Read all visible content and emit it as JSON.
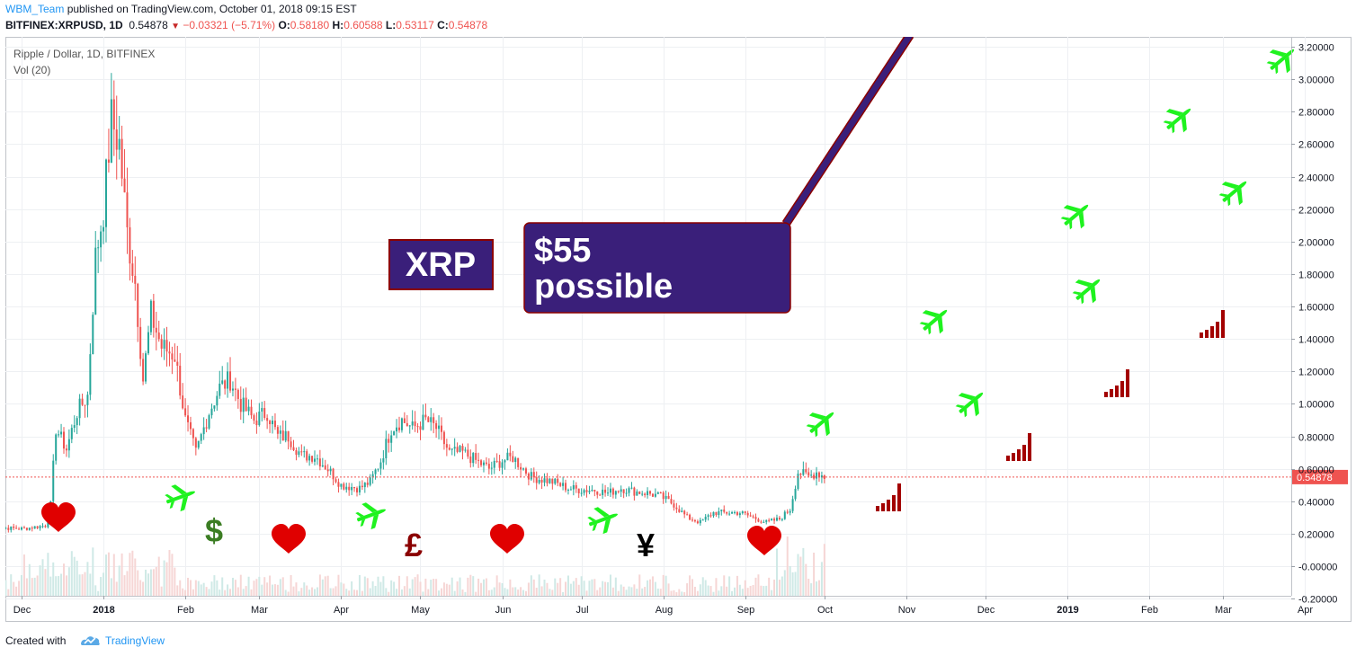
{
  "header": {
    "author": "WBM_Team",
    "published": "published on TradingView.com, October 01, 2018 09:15 EST",
    "symbol": "BITFINEX:XRPUSD, 1D",
    "last": "0.54878",
    "change": "−0.03321 (−5.71%)",
    "o_label": "O:",
    "o_value": "0.58180",
    "h_label": "H:",
    "h_value": "0.60588",
    "l_label": "L:",
    "l_value": "0.53117",
    "c_label": "C:",
    "c_value": "0.54878"
  },
  "legend": {
    "title": "Ripple / Dollar, 1D, BITFINEX",
    "volume": "Vol (20)"
  },
  "footer": {
    "created_with": "Created with",
    "brand": "TradingView"
  },
  "colors": {
    "up": "#26a69a",
    "down": "#ef5350",
    "arrow": "#3a1f7a",
    "plane": "#1ff21f",
    "heart": "#e00000",
    "bars": "#a30000",
    "last_price": "#ef5350"
  },
  "annotations": {
    "xrp_label": "XRP",
    "callout_line1": "$55",
    "callout_line2": "possible",
    "symbols": [
      {
        "text": "$",
        "color": "#3b7d23"
      },
      {
        "text": "£",
        "color": "#8b0000"
      },
      {
        "text": "¥",
        "color": "#000000"
      }
    ],
    "icons": {
      "plane": "airplane-icon",
      "heart": "heart-icon",
      "signal": "signal-bars-icon"
    }
  },
  "chart_data": {
    "type": "candlestick",
    "title": "Ripple / Dollar, 1D, BITFINEX",
    "y_axis": {
      "min": -0.2,
      "max": 3.25,
      "ticks": [
        "3.20000",
        "3.00000",
        "2.80000",
        "2.60000",
        "2.40000",
        "2.20000",
        "2.00000",
        "1.80000",
        "1.60000",
        "1.40000",
        "1.20000",
        "1.00000",
        "0.80000",
        "0.60000",
        "0.40000",
        "0.20000",
        "-0.00000",
        "-0.20000"
      ]
    },
    "x_axis": {
      "labels": [
        "Dec",
        "2018",
        "Feb",
        "Mar",
        "Apr",
        "May",
        "Jun",
        "Jul",
        "Aug",
        "Sep",
        "Oct",
        "Nov",
        "Dec",
        "2019",
        "Feb",
        "Mar",
        "Apr"
      ],
      "bold": [
        "2018",
        "2019"
      ]
    },
    "last_price": "0.54878",
    "price_path": [
      [
        "2017-11-20",
        0.24
      ],
      [
        "2017-12-01",
        0.23
      ],
      [
        "2017-12-10",
        0.25
      ],
      [
        "2017-12-12",
        0.38
      ],
      [
        "2017-12-14",
        0.85
      ],
      [
        "2017-12-18",
        0.72
      ],
      [
        "2017-12-22",
        0.95
      ],
      [
        "2017-12-26",
        1.05
      ],
      [
        "2017-12-29",
        1.9
      ],
      [
        "2018-01-01",
        2.2
      ],
      [
        "2018-01-04",
        2.75
      ],
      [
        "2018-01-07",
        2.6
      ],
      [
        "2018-01-10",
        2.05
      ],
      [
        "2018-01-13",
        1.75
      ],
      [
        "2018-01-16",
        1.15
      ],
      [
        "2018-01-19",
        1.55
      ],
      [
        "2018-01-23",
        1.35
      ],
      [
        "2018-01-28",
        1.3
      ],
      [
        "2018-02-01",
        0.9
      ],
      [
        "2018-02-05",
        0.7
      ],
      [
        "2018-02-10",
        0.95
      ],
      [
        "2018-02-14",
        1.1
      ],
      [
        "2018-02-18",
        1.15
      ],
      [
        "2018-02-22",
        1.0
      ],
      [
        "2018-02-27",
        0.9
      ],
      [
        "2018-03-04",
        0.95
      ],
      [
        "2018-03-08",
        0.8
      ],
      [
        "2018-03-12",
        0.8
      ],
      [
        "2018-03-17",
        0.68
      ],
      [
        "2018-03-22",
        0.68
      ],
      [
        "2018-03-27",
        0.6
      ],
      [
        "2018-04-01",
        0.5
      ],
      [
        "2018-04-08",
        0.48
      ],
      [
        "2018-04-12",
        0.52
      ],
      [
        "2018-04-16",
        0.65
      ],
      [
        "2018-04-20",
        0.85
      ],
      [
        "2018-04-24",
        0.9
      ],
      [
        "2018-04-28",
        0.85
      ],
      [
        "2018-05-03",
        0.9
      ],
      [
        "2018-05-07",
        0.85
      ],
      [
        "2018-05-12",
        0.7
      ],
      [
        "2018-05-17",
        0.7
      ],
      [
        "2018-05-22",
        0.65
      ],
      [
        "2018-05-27",
        0.6
      ],
      [
        "2018-06-01",
        0.65
      ],
      [
        "2018-06-05",
        0.67
      ],
      [
        "2018-06-09",
        0.6
      ],
      [
        "2018-06-12",
        0.55
      ],
      [
        "2018-06-20",
        0.52
      ],
      [
        "2018-06-26",
        0.48
      ],
      [
        "2018-07-01",
        0.47
      ],
      [
        "2018-07-06",
        0.47
      ],
      [
        "2018-07-11",
        0.45
      ],
      [
        "2018-07-16",
        0.48
      ],
      [
        "2018-07-21",
        0.46
      ],
      [
        "2018-07-26",
        0.45
      ],
      [
        "2018-07-31",
        0.43
      ],
      [
        "2018-08-05",
        0.38
      ],
      [
        "2018-08-10",
        0.3
      ],
      [
        "2018-08-15",
        0.27
      ],
      [
        "2018-08-20",
        0.33
      ],
      [
        "2018-08-25",
        0.33
      ],
      [
        "2018-08-30",
        0.33
      ],
      [
        "2018-09-04",
        0.3
      ],
      [
        "2018-09-09",
        0.27
      ],
      [
        "2018-09-14",
        0.29
      ],
      [
        "2018-09-18",
        0.35
      ],
      [
        "2018-09-21",
        0.58
      ],
      [
        "2018-09-25",
        0.55
      ],
      [
        "2018-09-28",
        0.58
      ],
      [
        "2018-10-01",
        0.55
      ]
    ]
  }
}
